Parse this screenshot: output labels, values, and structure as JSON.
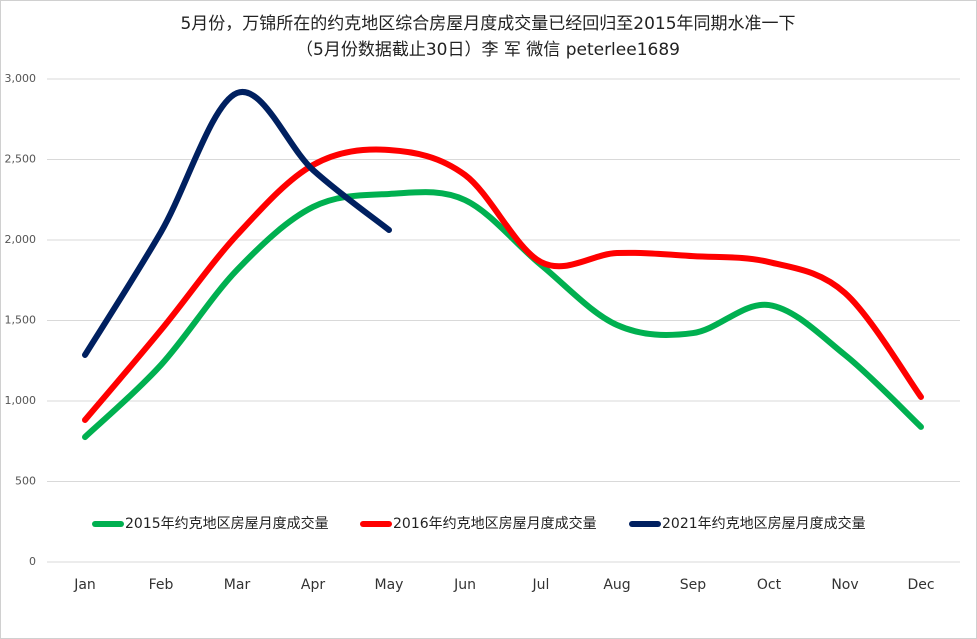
{
  "chart_data": {
    "type": "line",
    "title": "5月份，万锦所在的约克地区综合房屋月度成交量已经回归至2015年同期水准一下",
    "subtitle": "（5月份数据截止30日）李 军 微信 peterlee1689",
    "categories": [
      "Jan",
      "Feb",
      "Mar",
      "Apr",
      "May",
      "Jun",
      "Jul",
      "Aug",
      "Sep",
      "Oct",
      "Nov",
      "Dec"
    ],
    "series": [
      {
        "name": "2015年约克地区房屋月度成交量",
        "color": "#00b050",
        "values": [
          776,
          1224,
          1814,
          2205,
          2286,
          2248,
          1845,
          1472,
          1422,
          1596,
          1286,
          839
        ]
      },
      {
        "name": "2016年约克地区房屋月度成交量",
        "color": "#ff0000",
        "values": [
          882,
          1441,
          2031,
          2466,
          2559,
          2404,
          1863,
          1919,
          1900,
          1863,
          1671,
          1025
        ]
      },
      {
        "name": "2021年约克地区房屋月度成交量",
        "color": "#002060",
        "values": [
          1286,
          2050,
          2913,
          2435,
          2062,
          null,
          null,
          null,
          null,
          null,
          null,
          null
        ]
      }
    ],
    "ylim": [
      0,
      3000
    ],
    "yticks": [
      0,
      500,
      {
        "value": 1000,
        "label": "1,000"
      },
      {
        "value": 1500,
        "label": "1,500"
      },
      {
        "value": 2000,
        "label": "2,000"
      },
      {
        "value": 2500,
        "label": "2,500"
      },
      {
        "value": 3000,
        "label": "3,000"
      }
    ],
    "grid": true,
    "smooth": true,
    "legend_position": "lower center"
  }
}
